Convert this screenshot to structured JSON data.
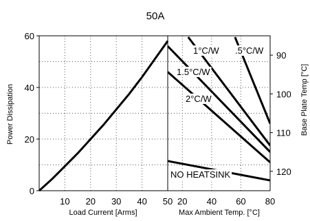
{
  "chart_data": {
    "type": "line",
    "title": "50A",
    "grid": true,
    "left_panel": {
      "xlabel": "Load Current  [Arms]",
      "ylabel": "Power Dissipation",
      "xlim": [
        0,
        50
      ],
      "ylim": [
        0,
        60
      ],
      "xticks": [
        10,
        20,
        30,
        40,
        50
      ],
      "yticks": [
        0,
        20,
        40,
        60
      ],
      "series": [
        {
          "x": [
            0,
            5,
            10,
            15,
            20,
            25,
            30,
            35,
            40,
            45,
            50
          ],
          "y": [
            0,
            4.5,
            9.5,
            14.5,
            20,
            25.5,
            31.5,
            37.5,
            44,
            51,
            58
          ]
        }
      ]
    },
    "right_panel": {
      "xlabel": "Max Ambient Temp. [°C]",
      "ylabel": "Base Plate Temp [°C]",
      "xlim": [
        10,
        80
      ],
      "y2lim": [
        125,
        85
      ],
      "xticks": [
        20,
        40,
        60,
        80
      ],
      "y2ticks": [
        90,
        100,
        110,
        120
      ],
      "series": [
        {
          "name": "1°C/W",
          "x": [
            24,
            80
          ],
          "y": [
            59.5,
            17.5
          ]
        },
        {
          "name": ".5°C/W",
          "x": [
            56,
            80
          ],
          "y": [
            59.5,
            26
          ]
        },
        {
          "name": "1.5°C/W",
          "x": [
            10,
            80
          ],
          "y": [
            56,
            15
          ]
        },
        {
          "name": "2°C/W",
          "x": [
            10,
            80
          ],
          "y": [
            46,
            11
          ]
        },
        {
          "name": "NO HEATSINK",
          "x": [
            10,
            80
          ],
          "y": [
            11.5,
            4
          ]
        }
      ]
    }
  }
}
